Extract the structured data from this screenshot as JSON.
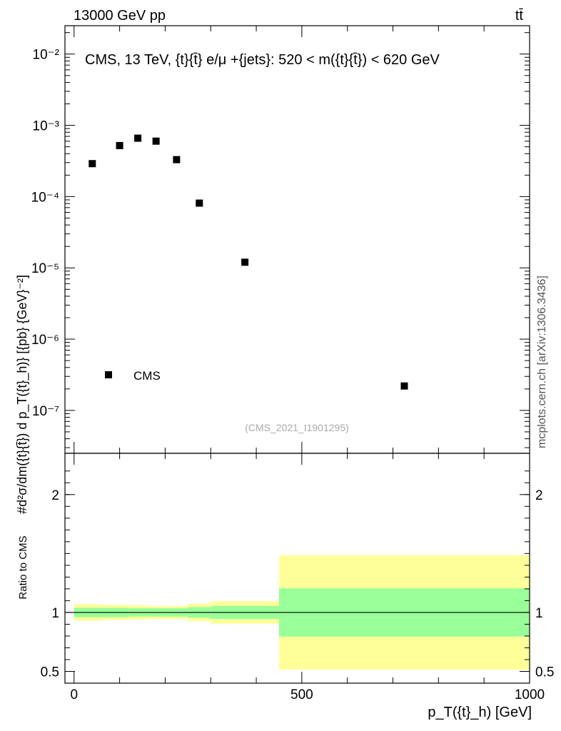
{
  "header": {
    "energy_label": "13000 GeV pp",
    "process_label": "tt̄"
  },
  "side_label": "mcplots.cern.ch [arXiv:1306.3436]",
  "chart_data": [
    {
      "type": "scatter",
      "panel": "main",
      "title": "CMS, 13 TeV, {t}{t̄} e/μ +{jets}: 520 < m({t}{t̄}) < 620 GeV",
      "ylabel": "#d²σ/dm({t}{t̄}) d p_T({t}_h)} [{pb} {GeV}⁻²]",
      "yscale": "log",
      "ylim": [
        2.5e-08,
        0.025
      ],
      "xlim": [
        -20,
        1000
      ],
      "y_ticks": [
        {
          "value": 1e-07,
          "label": "10⁻⁷"
        },
        {
          "value": 1e-06,
          "label": "10⁻⁶"
        },
        {
          "value": 1e-05,
          "label": "10⁻⁵"
        },
        {
          "value": 0.0001,
          "label": "10⁻⁴"
        },
        {
          "value": 0.001,
          "label": "10⁻³"
        },
        {
          "value": 0.01,
          "label": "10⁻²"
        }
      ],
      "legend": {
        "entry": "CMS",
        "placement": "bottom-left"
      },
      "watermark": "(CMS_2021_I1901295)",
      "series": [
        {
          "name": "CMS",
          "x": [
            40,
            100,
            140,
            180,
            225,
            275,
            375,
            725
          ],
          "y": [
            0.00029,
            0.00052,
            0.00066,
            0.0006,
            0.00033,
            8.1e-05,
            1.2e-05,
            2.2e-07
          ]
        }
      ]
    },
    {
      "type": "area",
      "panel": "ratio",
      "ylabel": "Ratio to CMS",
      "xlabel": "p_T({t}_h) [GeV]",
      "ylim": [
        0.4,
        2.35
      ],
      "xlim": [
        -20,
        1000
      ],
      "x_ticks": [
        {
          "value": 0,
          "label": "0"
        },
        {
          "value": 500,
          "label": "500"
        },
        {
          "value": 1000,
          "label": "1000"
        }
      ],
      "y_ticks": [
        {
          "value": 0.5,
          "label": "0.5"
        },
        {
          "value": 1,
          "label": "1"
        },
        {
          "value": 2,
          "label": "2"
        }
      ],
      "reference_line": 1,
      "bins": [
        {
          "lo": 0,
          "hi": 60,
          "stat_lo": 0.96,
          "stat_hi": 1.04,
          "tot_lo": 0.93,
          "tot_hi": 1.07
        },
        {
          "lo": 60,
          "hi": 120,
          "stat_lo": 0.96,
          "stat_hi": 1.04,
          "tot_lo": 0.935,
          "tot_hi": 1.065
        },
        {
          "lo": 120,
          "hi": 160,
          "stat_lo": 0.965,
          "stat_hi": 1.035,
          "tot_lo": 0.94,
          "tot_hi": 1.06
        },
        {
          "lo": 160,
          "hi": 200,
          "stat_lo": 0.965,
          "stat_hi": 1.035,
          "tot_lo": 0.945,
          "tot_hi": 1.055
        },
        {
          "lo": 200,
          "hi": 250,
          "stat_lo": 0.965,
          "stat_hi": 1.035,
          "tot_lo": 0.945,
          "tot_hi": 1.055
        },
        {
          "lo": 250,
          "hi": 300,
          "stat_lo": 0.955,
          "stat_hi": 1.045,
          "tot_lo": 0.925,
          "tot_hi": 1.075
        },
        {
          "lo": 300,
          "hi": 450,
          "stat_lo": 0.945,
          "stat_hi": 1.055,
          "tot_lo": 0.905,
          "tot_hi": 1.095
        },
        {
          "lo": 450,
          "hi": 1000,
          "stat_lo": 0.795,
          "stat_hi": 1.205,
          "tot_lo": 0.515,
          "tot_hi": 1.485
        }
      ],
      "colors": {
        "stat": "#99ff99",
        "total": "#ffff99"
      }
    }
  ]
}
